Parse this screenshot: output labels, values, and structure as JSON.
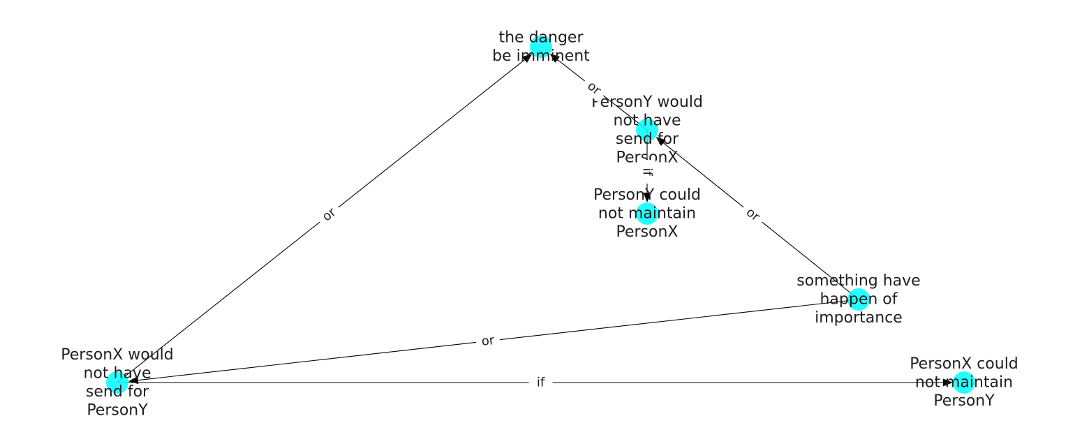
{
  "graph": {
    "nodes": [
      {
        "id": "danger",
        "lines": [
          "the danger",
          "be imminent"
        ]
      },
      {
        "id": "py_would",
        "lines": [
          "PersonY would",
          "not have",
          "send for",
          "PersonX"
        ]
      },
      {
        "id": "py_could",
        "lines": [
          "PersonY could",
          "not maintain",
          "PersonX"
        ]
      },
      {
        "id": "something",
        "lines": [
          "something have",
          "happen of",
          "importance"
        ]
      },
      {
        "id": "px_would",
        "lines": [
          "PersonX would",
          "not have",
          "send for",
          "PersonY"
        ]
      },
      {
        "id": "px_could",
        "lines": [
          "PersonX could",
          "not maintain",
          "PersonY"
        ]
      }
    ],
    "edges": [
      {
        "from": "px_would",
        "to": "danger",
        "label": "or"
      },
      {
        "from": "py_would",
        "to": "danger",
        "label": "or"
      },
      {
        "from": "py_would",
        "to": "py_could",
        "label": "if"
      },
      {
        "from": "something",
        "to": "py_would",
        "label": "or"
      },
      {
        "from": "something",
        "to": "px_would",
        "label": "or"
      },
      {
        "from": "px_would",
        "to": "px_could",
        "label": "if"
      }
    ],
    "colors": {
      "node_fill": "#00ffff",
      "edge": "#000000",
      "text": "#1f1f1f"
    }
  }
}
